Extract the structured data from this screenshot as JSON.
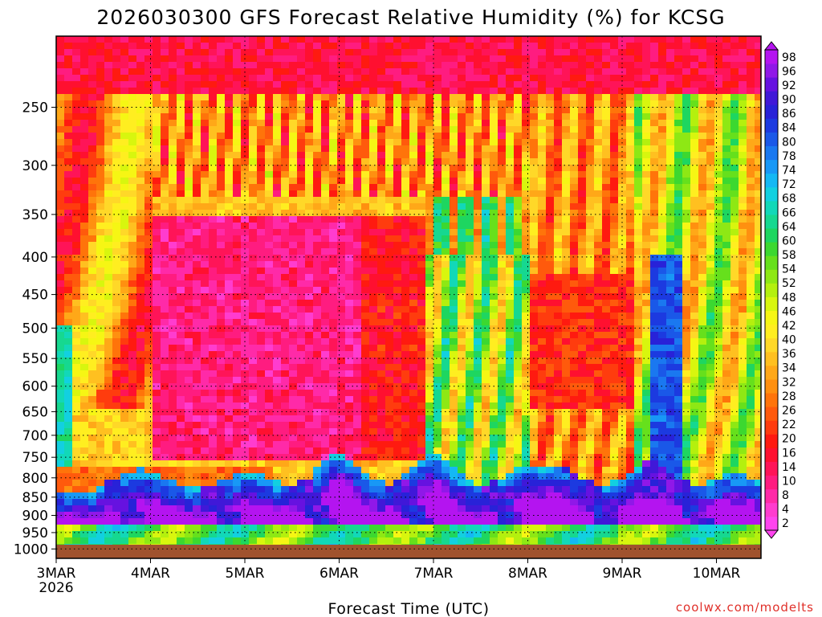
{
  "chart_data": {
    "type": "heatmap",
    "title": "2026030300 GFS Forecast Relative Humidity (%) for KCSG",
    "xlabel": "Forecast Time (UTC)",
    "ylabel": "",
    "x_ticks": [
      "3MAR",
      "4MAR",
      "5MAR",
      "6MAR",
      "7MAR",
      "8MAR",
      "9MAR",
      "10MAR"
    ],
    "x_year": "2026",
    "x_range_days": [
      0,
      7.5
    ],
    "y_ticks": [
      "250",
      "300",
      "350",
      "400",
      "450",
      "500",
      "550",
      "600",
      "650",
      "700",
      "750",
      "800",
      "850",
      "900",
      "950",
      "1000"
    ],
    "y_values": [
      250,
      300,
      350,
      400,
      450,
      500,
      550,
      600,
      650,
      700,
      750,
      800,
      850,
      900,
      950,
      1000
    ],
    "y_range": [
      1030,
      200
    ],
    "y_scale": "log",
    "grid": true,
    "colorbar": {
      "labels": [
        "2",
        "4",
        "8",
        "10",
        "14",
        "16",
        "20",
        "22",
        "26",
        "28",
        "32",
        "34",
        "36",
        "40",
        "42",
        "46",
        "48",
        "52",
        "54",
        "58",
        "60",
        "64",
        "66",
        "68",
        "72",
        "74",
        "78",
        "80",
        "84",
        "86",
        "90",
        "92",
        "96",
        "98"
      ],
      "colors": [
        "#ff44ee",
        "#ff3ccf",
        "#ff2aa8",
        "#ff1c80",
        "#ff1458",
        "#ff1030",
        "#ff1a10",
        "#ff3c0e",
        "#ff5a0c",
        "#ff740a",
        "#ff9010",
        "#ffa818",
        "#ffc020",
        "#ffd828",
        "#ffee20",
        "#f6f614",
        "#d8f60e",
        "#b4f00e",
        "#8ee814",
        "#66e01c",
        "#3cd830",
        "#1ed660",
        "#16d890",
        "#12d8b8",
        "#12d0e0",
        "#14b8f4",
        "#1898f6",
        "#1a78f0",
        "#1a58e8",
        "#1c3ae0",
        "#2822d8",
        "#4018d8",
        "#6612e0",
        "#9018e8",
        "#b414f0"
      ],
      "position": "right"
    },
    "description_levels": {
      "low_moist_layer_hpa": [
        800,
        1000
      ],
      "dry_midlevel_hpa": [
        400,
        750
      ]
    },
    "ground_color": "#a0522d",
    "credit": "coolwx.com/modelts"
  }
}
